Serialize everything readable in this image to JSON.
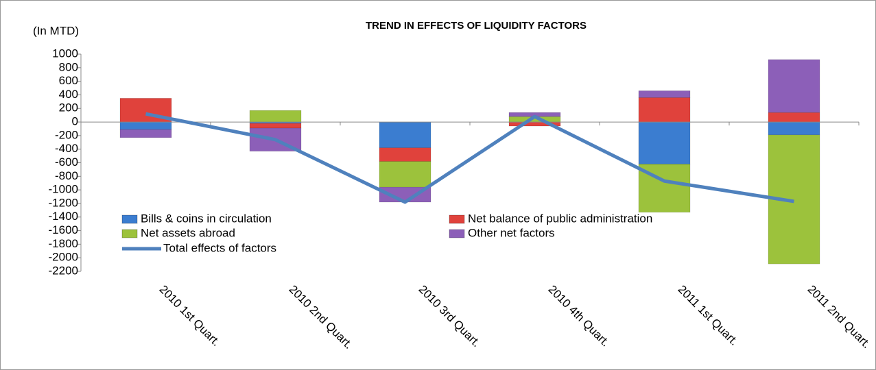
{
  "chart_data": {
    "type": "bar",
    "stacked": true,
    "title": "TREND IN EFFECTS OF LIQUIDITY FACTORS",
    "y_label": "(In MTD)",
    "categories": [
      "2010 1st Quart.",
      "2010 2nd Quart.",
      "2010 3rd Quart.",
      "2010 4th Quart.",
      "2011 1st Quart.",
      "2011 2nd Quart."
    ],
    "series": [
      {
        "name": "Bills & coins in circulation",
        "color": "#3b7dd0",
        "values": [
          -110,
          -20,
          -380,
          0,
          -620,
          -190
        ]
      },
      {
        "name": "Net balance of public administration",
        "color": "#e0423c",
        "values": [
          350,
          -70,
          -200,
          -60,
          360,
          140
        ]
      },
      {
        "name": "Net assets abroad",
        "color": "#9cc23c",
        "values": [
          0,
          170,
          -380,
          80,
          -710,
          -1900
        ]
      },
      {
        "name": "Other net factors",
        "color": "#8c5fb8",
        "values": [
          -120,
          -340,
          -220,
          60,
          100,
          780
        ]
      }
    ],
    "line_series": {
      "name": "Total effects of factors",
      "color": "#4f81bd",
      "values": [
        120,
        -260,
        -1180,
        80,
        -870,
        -1170
      ]
    },
    "ylim": [
      -2200,
      1000
    ],
    "yticks": [
      -2200,
      -2000,
      -1800,
      -1600,
      -1400,
      -1200,
      -1000,
      -800,
      -600,
      -400,
      -200,
      0,
      200,
      400,
      600,
      800,
      1000
    ],
    "legend": "lower left"
  }
}
